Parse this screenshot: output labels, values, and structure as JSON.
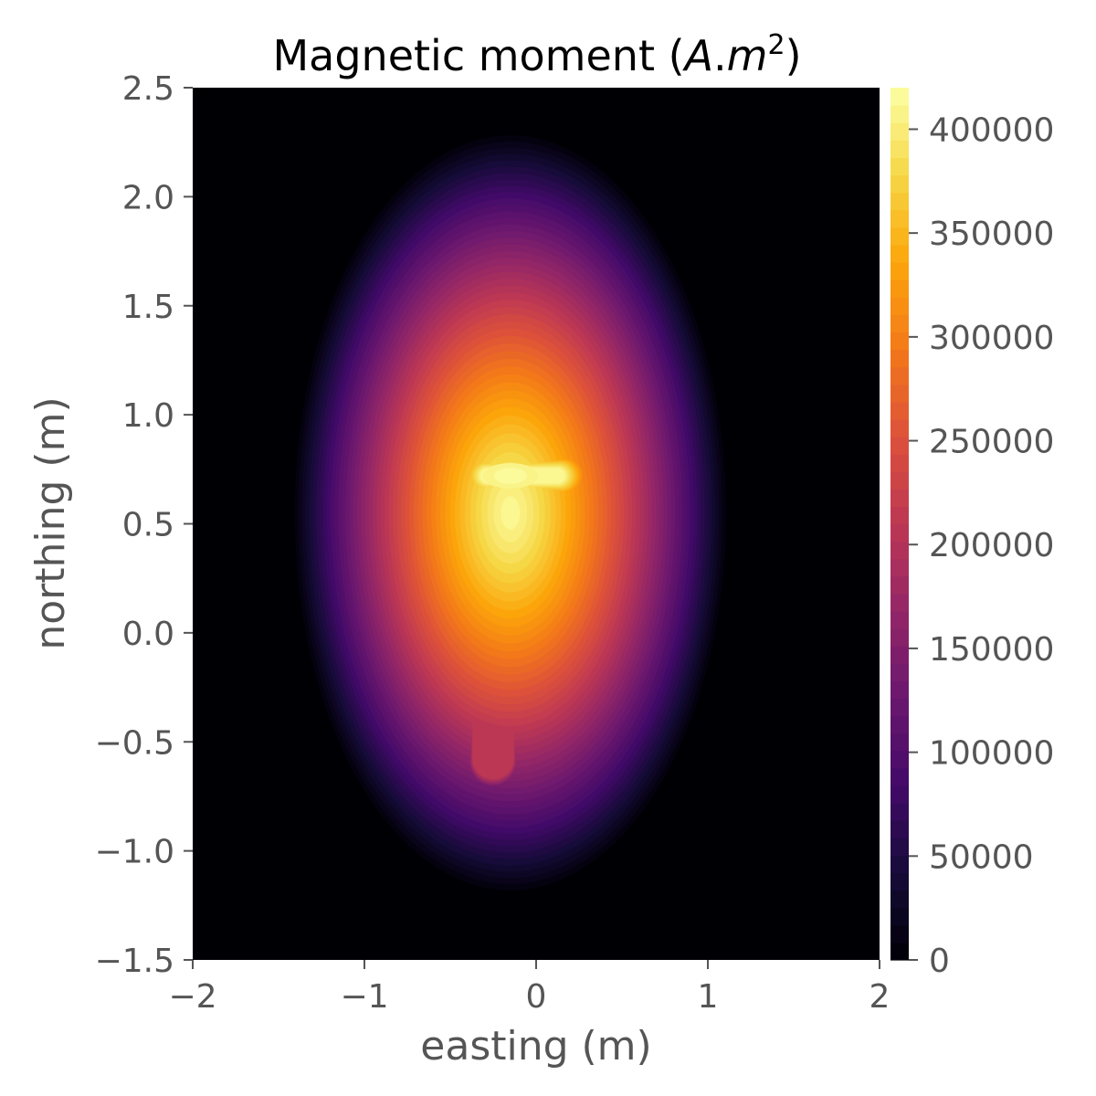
{
  "chart_data": {
    "type": "heatmap",
    "title": "Magnetic moment (A.m²)",
    "title_plain": "Magnetic moment (",
    "title_italic_1": "A",
    "title_dot": ".",
    "title_italic_2": "m",
    "title_sup": "2",
    "title_close": ")",
    "xlabel": "easting (m)",
    "ylabel": "northing (m)",
    "xlim": [
      -2,
      2
    ],
    "ylim": [
      -1.5,
      2.5
    ],
    "x_ticks": [
      -2,
      -1,
      0,
      1,
      2
    ],
    "x_tick_labels": [
      "−2",
      "−1",
      "0",
      "1",
      "2"
    ],
    "y_ticks": [
      -1.5,
      -1.0,
      -0.5,
      0.0,
      0.5,
      1.0,
      1.5,
      2.0,
      2.5
    ],
    "y_tick_labels": [
      "−1.5",
      "−1.0",
      "−0.5",
      "0.0",
      "0.5",
      "1.0",
      "1.5",
      "2.0",
      "2.5"
    ],
    "colormap": "inferno",
    "color_range": [
      0,
      420000
    ],
    "colorbar_ticks": [
      0,
      50000,
      100000,
      150000,
      200000,
      250000,
      300000,
      350000,
      400000
    ],
    "colorbar_tick_labels": [
      "0",
      "50000",
      "100000",
      "150000",
      "200000",
      "250000",
      "300000",
      "350000",
      "400000"
    ],
    "levels": 50,
    "features": [
      {
        "name": "peak",
        "x": -0.15,
        "y": 0.72,
        "value": 415000
      },
      {
        "name": "horizontal bar",
        "x_range": [
          -0.55,
          0.5
        ],
        "y": 0.72,
        "value": 330000
      },
      {
        "name": "vertical stem",
        "x": -0.25,
        "y_range": [
          -0.55,
          0.6
        ],
        "value": 210000
      },
      {
        "name": "outer halo",
        "x_range": [
          -1.45,
          1.4
        ],
        "y_range": [
          -1.15,
          1.9
        ],
        "value": 15000
      }
    ]
  }
}
